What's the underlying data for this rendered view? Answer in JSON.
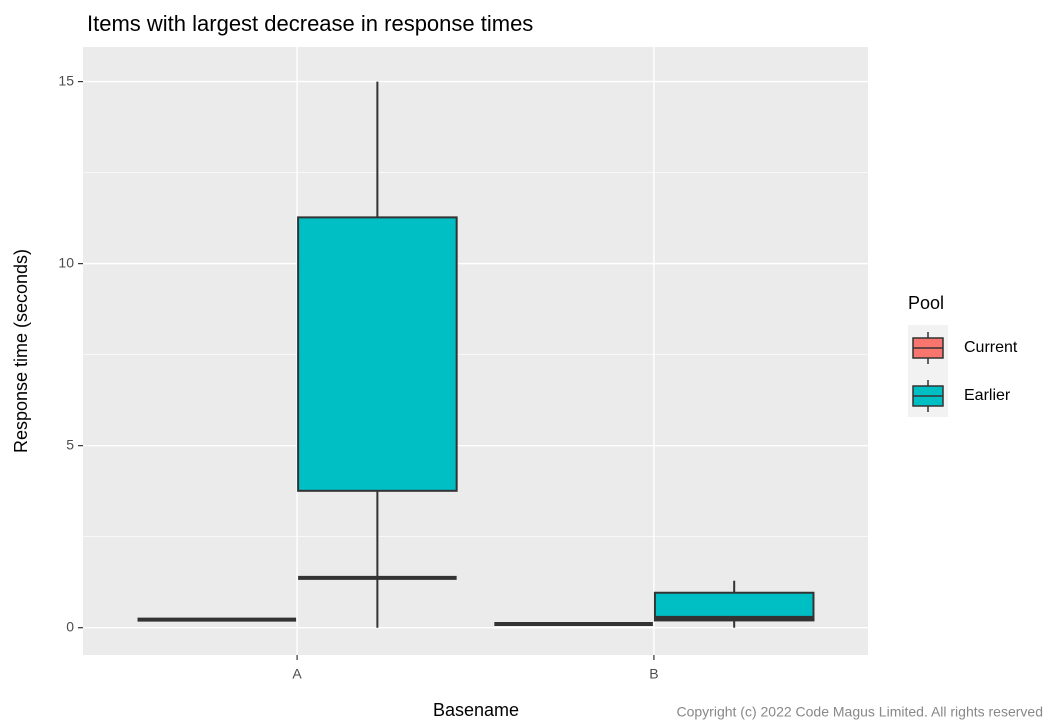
{
  "chart_data": {
    "type": "box",
    "title": "Items with largest decrease in response times",
    "x_label": "Basename",
    "y_label": "Response time (seconds)",
    "categories": [
      "A",
      "B"
    ],
    "ylim": [
      -0.75,
      15.95
    ],
    "yticks": [
      0,
      5,
      10,
      15
    ],
    "grid": true,
    "legend_title": "Pool",
    "legend_position": "right",
    "series": [
      {
        "name": "Current",
        "color": "#F8766D",
        "min": [
          0.22,
          0.1
        ],
        "q1": [
          0.22,
          0.1
        ],
        "median": [
          0.22,
          0.1
        ],
        "q3": [
          0.22,
          0.1
        ],
        "max": [
          0.22,
          0.1
        ]
      },
      {
        "name": "Earlier",
        "color": "#00BFC4",
        "min": [
          0,
          0
        ],
        "q1": [
          3.76,
          0.2
        ],
        "median": [
          1.37,
          0.27
        ],
        "q3": [
          11.27,
          0.96
        ],
        "max": [
          15,
          1.29
        ]
      }
    ],
    "footer": "Copyright (c) 2022 Code Magus Limited. All rights reserved"
  }
}
